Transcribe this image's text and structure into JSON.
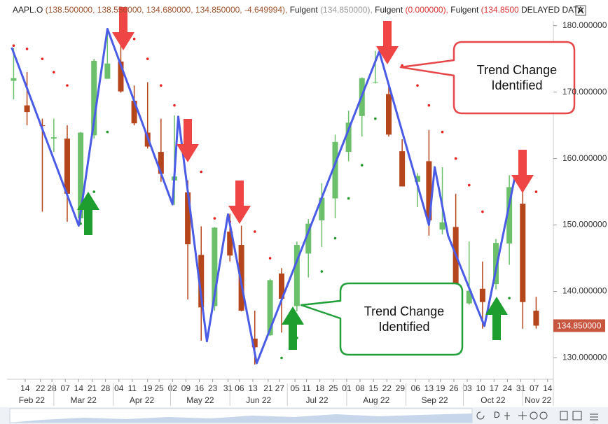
{
  "chart_data": {
    "type": "candlestick",
    "header": {
      "symbol": "AAPL.O",
      "quote": "(138.500000, 138.550000, 134.680000, 134.850000, -4.649994),",
      "indicators": [
        {
          "name": "Fulgent",
          "value": "(134.850000),"
        },
        {
          "name": "Fulgent",
          "value": "(0.000000),"
        },
        {
          "name": "Fulgent",
          "value": "(134.8500"
        }
      ],
      "status": "DELAYED DATA"
    },
    "x": [
      "2022-02-08",
      "2022-02-15",
      "2022-02-23",
      "2022-03-01",
      "2022-03-08",
      "2022-03-15",
      "2022-03-22",
      "2022-03-29",
      "2022-04-05",
      "2022-04-12",
      "2022-04-19",
      "2022-04-26",
      "2022-05-03",
      "2022-05-10",
      "2022-05-17",
      "2022-05-24",
      "2022-06-01",
      "2022-06-07",
      "2022-06-14",
      "2022-06-22",
      "2022-06-28",
      "2022-07-06",
      "2022-07-12",
      "2022-07-19",
      "2022-07-26",
      "2022-08-02",
      "2022-08-09",
      "2022-08-16",
      "2022-08-23",
      "2022-08-30",
      "2022-09-07",
      "2022-09-13",
      "2022-09-20",
      "2022-09-27",
      "2022-10-04",
      "2022-10-11",
      "2022-10-18",
      "2022-10-25",
      "2022-11-01",
      "2022-11-08"
    ],
    "open": [
      171.7,
      168,
      165,
      163,
      163,
      151,
      163.5,
      172,
      174.6,
      168.7,
      163.9,
      161,
      156.7,
      154.9,
      145.5,
      137.8,
      149,
      147,
      132.9,
      133.4,
      142.7,
      137.8,
      145.7,
      150.7,
      154,
      161,
      166.4,
      171.5,
      169.7,
      161.1,
      156.5,
      159.6,
      149.3,
      149.7,
      138.2,
      140.4,
      141.1,
      147.2,
      153.2,
      137.1
    ],
    "high": [
      176.6,
      173,
      166,
      166,
      165,
      164,
      175,
      179.6,
      178.5,
      171,
      171.5,
      166,
      166.5,
      156.7,
      149.8,
      149.7,
      151.7,
      149.9,
      137.1,
      141.9,
      143.5,
      147.5,
      150.9,
      156.3,
      163.6,
      167.2,
      172.2,
      176.2,
      170.9,
      162.9,
      157.8,
      164.3,
      158.7,
      154.7,
      147.5,
      144.5,
      147.9,
      157.5,
      155.5,
      139.2
    ],
    "low": [
      168.9,
      165,
      152,
      161,
      150.5,
      150,
      163,
      172,
      169.9,
      165,
      161.5,
      156.5,
      153,
      138.8,
      132.6,
      137.1,
      144.5,
      137,
      129,
      133.3,
      133.8,
      137,
      142.1,
      146.7,
      151,
      159.6,
      163.3,
      171.3,
      163.3,
      155.8,
      152.7,
      148.4,
      148.6,
      138,
      138,
      134.4,
      140.3,
      144,
      134.4,
      134.4
    ],
    "close": [
      172.1,
      167,
      164.9,
      163.2,
      154.7,
      163.9,
      174.7,
      174.3,
      170.1,
      165.3,
      161.8,
      157.7,
      157.3,
      147.1,
      137.6,
      149.6,
      145.4,
      137.1,
      131.6,
      141.7,
      138.9,
      147,
      150.2,
      154.1,
      162.5,
      165.4,
      172.1,
      171.5,
      163.6,
      155.8,
      157.4,
      150.7,
      150.4,
      138.2,
      140.1,
      138.4,
      147.3,
      155.7,
      138.4,
      134.85
    ],
    "up_color": "#6cc06c",
    "down_color": "#b5451b",
    "indicator": {
      "name": "Fulgent",
      "values": [
        177,
        176.5,
        175,
        173,
        171,
        150.2,
        155,
        164,
        179.6,
        178,
        175,
        171,
        168,
        165,
        158,
        151,
        150.5,
        151.5,
        149,
        145,
        130,
        133,
        138,
        143,
        148,
        154,
        159,
        166,
        176,
        174,
        171,
        168,
        164,
        160,
        156,
        152,
        134.5,
        139,
        157.5,
        155
      ],
      "above_color": "#e8201e",
      "below_color": "#1f9a2a"
    },
    "zigzag": {
      "x": [
        "2022-02-07",
        "2022-03-14",
        "2022-03-29",
        "2022-05-02",
        "2022-05-05",
        "2022-05-20",
        "2022-05-31",
        "2022-06-15",
        "2022-08-18",
        "2022-09-13",
        "2022-09-16",
        "2022-09-23",
        "2022-10-12",
        "2022-10-28"
      ],
      "values": [
        176.7,
        149.9,
        179.5,
        153.1,
        166.3,
        132.5,
        151.6,
        129.2,
        176.1,
        150,
        158.7,
        148.4,
        134.8,
        157.4
      ],
      "color": "#4a5be6"
    },
    "last_price": {
      "value": 134.85,
      "label": "134.850000",
      "color": "#c8553d"
    },
    "annotations": [
      {
        "text": "Trend Change Identified",
        "color": "#e8474a"
      },
      {
        "text": "Trend Change Identified",
        "color": "#21a03a"
      }
    ],
    "xlim": [
      "2022-02-06",
      "2022-11-17"
    ],
    "xticks": [
      {
        "value": "2022-02-14",
        "label": "14"
      },
      {
        "value": "2022-02-22",
        "label": "22"
      },
      {
        "value": "2022-02-28",
        "label": "28"
      },
      {
        "value": "2022-03-07",
        "label": "07"
      },
      {
        "value": "2022-03-14",
        "label": "14"
      },
      {
        "value": "2022-03-21",
        "label": "21"
      },
      {
        "value": "2022-03-28",
        "label": "28"
      },
      {
        "value": "2022-04-04",
        "label": "04"
      },
      {
        "value": "2022-04-11",
        "label": "11"
      },
      {
        "value": "2022-04-19",
        "label": "19"
      },
      {
        "value": "2022-04-25",
        "label": "25"
      },
      {
        "value": "2022-05-02",
        "label": "02"
      },
      {
        "value": "2022-05-09",
        "label": "09"
      },
      {
        "value": "2022-05-16",
        "label": "16"
      },
      {
        "value": "2022-05-23",
        "label": "23"
      },
      {
        "value": "2022-05-31",
        "label": "31"
      },
      {
        "value": "2022-06-06",
        "label": "06"
      },
      {
        "value": "2022-06-13",
        "label": "13"
      },
      {
        "value": "2022-06-21",
        "label": "21"
      },
      {
        "value": "2022-06-27",
        "label": "27"
      },
      {
        "value": "2022-07-05",
        "label": "05"
      },
      {
        "value": "2022-07-11",
        "label": "11"
      },
      {
        "value": "2022-07-18",
        "label": "18"
      },
      {
        "value": "2022-07-25",
        "label": "25"
      },
      {
        "value": "2022-08-01",
        "label": "01"
      },
      {
        "value": "2022-08-08",
        "label": "08"
      },
      {
        "value": "2022-08-15",
        "label": "15"
      },
      {
        "value": "2022-08-22",
        "label": "22"
      },
      {
        "value": "2022-08-29",
        "label": "29"
      },
      {
        "value": "2022-09-06",
        "label": "06"
      },
      {
        "value": "2022-09-13",
        "label": "13"
      },
      {
        "value": "2022-09-19",
        "label": "19"
      },
      {
        "value": "2022-09-26",
        "label": "26"
      },
      {
        "value": "2022-10-03",
        "label": "03"
      },
      {
        "value": "2022-10-10",
        "label": "10"
      },
      {
        "value": "2022-10-17",
        "label": "17"
      },
      {
        "value": "2022-10-24",
        "label": "24"
      },
      {
        "value": "2022-10-31",
        "label": "31"
      },
      {
        "value": "2022-11-07",
        "label": "07"
      },
      {
        "value": "2022-11-14",
        "label": "14"
      }
    ],
    "months": [
      {
        "value": "2022-02-01",
        "label": "Feb 22"
      },
      {
        "value": "2022-03-01",
        "label": "Mar 22"
      },
      {
        "value": "2022-04-01",
        "label": "Apr 22"
      },
      {
        "value": "2022-05-01",
        "label": "May 22"
      },
      {
        "value": "2022-06-01",
        "label": "Jun 22"
      },
      {
        "value": "2022-07-01",
        "label": "Jul 22"
      },
      {
        "value": "2022-08-01",
        "label": "Aug 22"
      },
      {
        "value": "2022-09-01",
        "label": "Sep 22"
      },
      {
        "value": "2022-10-01",
        "label": "Oct 22"
      },
      {
        "value": "2022-11-01",
        "label": "Nov 22"
      }
    ],
    "ylim": [
      127,
      180.7
    ],
    "yticks": [
      {
        "value": 130,
        "label": "130.000000"
      },
      {
        "value": 140,
        "label": "140.000000"
      },
      {
        "value": 150,
        "label": "150.000000"
      },
      {
        "value": 160,
        "label": "160.000000"
      },
      {
        "value": 170,
        "label": "170.000000"
      },
      {
        "value": 180,
        "label": "180.000000"
      }
    ],
    "toolbar": {
      "period": "D"
    }
  }
}
